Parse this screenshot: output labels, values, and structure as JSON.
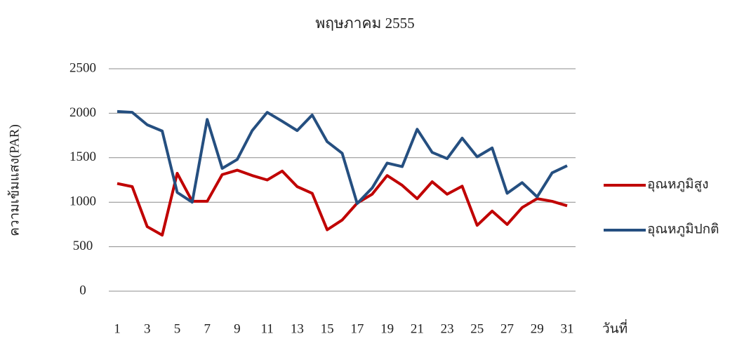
{
  "chart_data": {
    "type": "line",
    "title": "พฤษภาคม 2555",
    "y_label": "ความเข้มแสง(PAR)",
    "x_label": "วันที่",
    "categories": [
      "1",
      null,
      "3",
      null,
      "5",
      null,
      "7",
      null,
      "9",
      null,
      "11",
      null,
      "13",
      null,
      "15",
      null,
      "17",
      null,
      "19",
      null,
      "21",
      null,
      "23",
      null,
      "25",
      null,
      "27",
      null,
      "29",
      null,
      "31"
    ],
    "series": [
      {
        "name": "อุณหภูมิสูง",
        "color": "#c00000",
        "values": [
          1210,
          1175,
          725,
          630,
          1325,
          1010,
          1010,
          1310,
          1360,
          1300,
          1250,
          1350,
          1175,
          1100,
          690,
          800,
          990,
          1090,
          1300,
          1190,
          1040,
          1230,
          1090,
          1180,
          740,
          900,
          750,
          940,
          1040,
          1010,
          960
        ]
      },
      {
        "name": "อุณหภูมิปกติ",
        "color": "#254f80",
        "values": [
          2020,
          2010,
          1870,
          1800,
          1110,
          1000,
          1930,
          1380,
          1480,
          1805,
          2010,
          1910,
          1805,
          1980,
          1680,
          1550,
          985,
          1160,
          1440,
          1400,
          1820,
          1560,
          1490,
          1720,
          1510,
          1610,
          1100,
          1220,
          1060,
          1330,
          1410
        ]
      }
    ],
    "ylim": [
      0,
      2500
    ],
    "yticks": [
      0,
      500,
      1000,
      1500,
      2000,
      2500
    ],
    "grid": true,
    "legend": "right"
  }
}
